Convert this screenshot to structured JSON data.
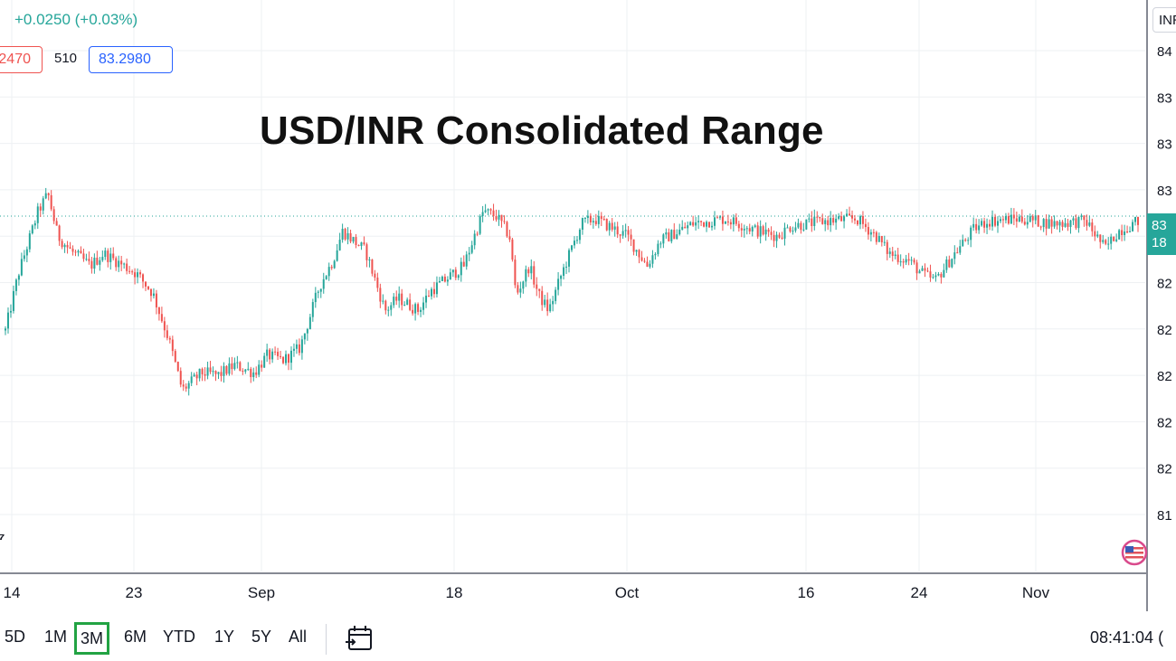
{
  "header": {
    "change": "+0.0250 (+0.03%)",
    "bid": "2470",
    "spread": "510",
    "ask": "83.2980",
    "symbol": "INR"
  },
  "annotation_title": "USD/INR Consolidated Range",
  "price_scale": {
    "labels": [
      "84",
      "83",
      "83",
      "83",
      "83",
      "82",
      "82",
      "82",
      "82",
      "82",
      "81"
    ],
    "current_price_lines": [
      "83",
      "18"
    ]
  },
  "time_scale": {
    "labels": [
      "14",
      "23",
      "Sep",
      "18",
      "Oct",
      "16",
      "24",
      "Nov"
    ]
  },
  "toolbar": {
    "ranges": [
      "5D",
      "1M",
      "3M",
      "6M",
      "YTD",
      "1Y",
      "5Y",
      "All"
    ],
    "active_range": "3M",
    "calendar_icon": "calendar-icon",
    "clock": "08:41:04 (",
    "left_arrow": "⁷"
  },
  "colors": {
    "up": "#26a69a",
    "down": "#ef5350",
    "grid": "#eef0f3",
    "active_range": "#22a343",
    "ask": "#2962ff"
  },
  "chart_data": {
    "type": "candlestick",
    "title": "USD/INR Consolidated Range",
    "ylim": [
      81.75,
      84.05
    ],
    "current_price": 83.18,
    "x_ticks": [
      "14",
      "23",
      "Sep",
      "18",
      "Oct",
      "16",
      "24",
      "Nov"
    ],
    "close_path": [
      {
        "t": 0.0,
        "v": 82.72
      },
      {
        "t": 0.4,
        "v": 82.95
      },
      {
        "t": 1.0,
        "v": 83.2
      },
      {
        "t": 1.3,
        "v": 83.27
      },
      {
        "t": 1.6,
        "v": 83.1
      },
      {
        "t": 2.0,
        "v": 83.04
      },
      {
        "t": 2.6,
        "v": 82.98
      },
      {
        "t": 3.0,
        "v": 83.03
      },
      {
        "t": 4.0,
        "v": 82.95
      },
      {
        "t": 4.5,
        "v": 82.87
      },
      {
        "t": 5.0,
        "v": 82.68
      },
      {
        "t": 5.4,
        "v": 82.48
      },
      {
        "t": 6.0,
        "v": 82.55
      },
      {
        "t": 6.5,
        "v": 82.54
      },
      {
        "t": 7.0,
        "v": 82.58
      },
      {
        "t": 7.6,
        "v": 82.55
      },
      {
        "t": 8.0,
        "v": 82.62
      },
      {
        "t": 8.5,
        "v": 82.6
      },
      {
        "t": 9.0,
        "v": 82.65
      },
      {
        "t": 9.6,
        "v": 82.9
      },
      {
        "t": 10.0,
        "v": 83.0
      },
      {
        "t": 10.3,
        "v": 83.12
      },
      {
        "t": 11.0,
        "v": 83.04
      },
      {
        "t": 11.6,
        "v": 82.8
      },
      {
        "t": 12.0,
        "v": 82.85
      },
      {
        "t": 12.6,
        "v": 82.8
      },
      {
        "t": 13.0,
        "v": 82.88
      },
      {
        "t": 14.0,
        "v": 82.98
      },
      {
        "t": 14.6,
        "v": 83.2
      },
      {
        "t": 15.0,
        "v": 83.18
      },
      {
        "t": 15.4,
        "v": 83.1
      },
      {
        "t": 15.6,
        "v": 82.86
      },
      {
        "t": 16.0,
        "v": 82.98
      },
      {
        "t": 16.3,
        "v": 82.86
      },
      {
        "t": 16.6,
        "v": 82.8
      },
      {
        "t": 17.0,
        "v": 82.95
      },
      {
        "t": 17.6,
        "v": 83.15
      },
      {
        "t": 18.0,
        "v": 83.17
      },
      {
        "t": 19.0,
        "v": 83.1
      },
      {
        "t": 19.6,
        "v": 82.98
      },
      {
        "t": 20.0,
        "v": 83.08
      },
      {
        "t": 21.0,
        "v": 83.15
      },
      {
        "t": 22.0,
        "v": 83.17
      },
      {
        "t": 23.0,
        "v": 83.12
      },
      {
        "t": 23.6,
        "v": 83.1
      },
      {
        "t": 24.0,
        "v": 83.14
      },
      {
        "t": 25.0,
        "v": 83.16
      },
      {
        "t": 26.0,
        "v": 83.17
      },
      {
        "t": 26.6,
        "v": 83.1
      },
      {
        "t": 27.0,
        "v": 83.03
      },
      {
        "t": 27.6,
        "v": 83.0
      },
      {
        "t": 28.0,
        "v": 82.95
      },
      {
        "t": 28.4,
        "v": 82.92
      },
      {
        "t": 29.0,
        "v": 83.03
      },
      {
        "t": 29.6,
        "v": 83.13
      },
      {
        "t": 30.0,
        "v": 83.16
      },
      {
        "t": 31.0,
        "v": 83.17
      },
      {
        "t": 32.0,
        "v": 83.15
      },
      {
        "t": 33.0,
        "v": 83.16
      },
      {
        "t": 33.6,
        "v": 83.05
      },
      {
        "t": 34.0,
        "v": 83.12
      },
      {
        "t": 34.6,
        "v": 83.16
      }
    ],
    "notable_extremes": {
      "high": 83.33,
      "low": 82.4
    }
  }
}
